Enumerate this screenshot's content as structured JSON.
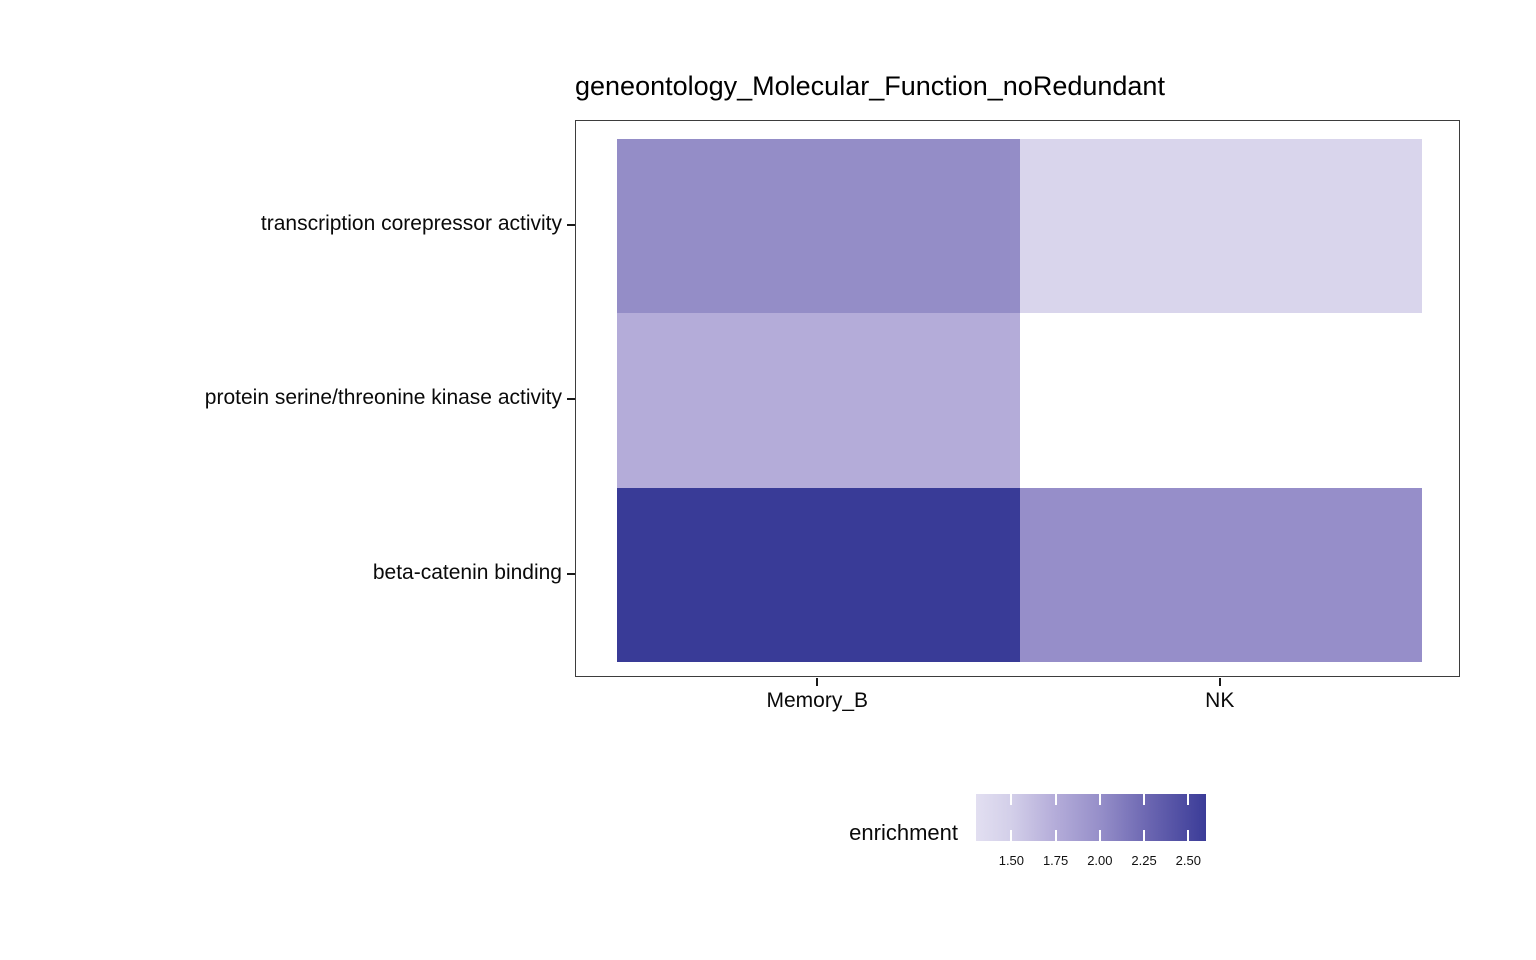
{
  "title": "geneontology_Molecular_Function_noRedundant",
  "chart_data": {
    "type": "heatmap",
    "title": "geneontology_Molecular_Function_noRedundant",
    "x_categories": [
      "Memory_B",
      "NK"
    ],
    "y_categories": [
      "transcription corepressor activity",
      "protein serine/threonine kinase activity",
      "beta-catenin binding"
    ],
    "values": [
      [
        2.05,
        1.35
      ],
      [
        1.75,
        null
      ],
      [
        2.6,
        2.0
      ]
    ],
    "cell_colors": [
      [
        "#948dc7",
        "#d9d5ec"
      ],
      [
        "#b4acd9",
        null
      ],
      [
        "#393b97",
        "#968ec9"
      ]
    ],
    "missing_cell_note": "NK x protein serine/threonine kinase activity has no value (blank white cell)",
    "grid": "off",
    "panel_border_color": "#3d3d3d",
    "legend": {
      "title": "enrichment",
      "position": "bottom-right",
      "tick_labels": [
        "1.50",
        "1.75",
        "2.00",
        "2.25",
        "2.50"
      ],
      "tick_values": [
        1.5,
        1.75,
        2.0,
        2.25,
        2.5
      ],
      "range": [
        1.3,
        2.6
      ],
      "color_low": "#e2dff1",
      "color_high": "#3b3c98",
      "gradient_stops": [
        [
          "0%",
          "#e2dff1"
        ],
        [
          "15.4%",
          "#d3cfe9"
        ],
        [
          "34.6%",
          "#b4acd9"
        ],
        [
          "53.8%",
          "#968fc9"
        ],
        [
          "75%",
          "#6b66b1"
        ],
        [
          "100%",
          "#3b3c98"
        ]
      ]
    }
  }
}
